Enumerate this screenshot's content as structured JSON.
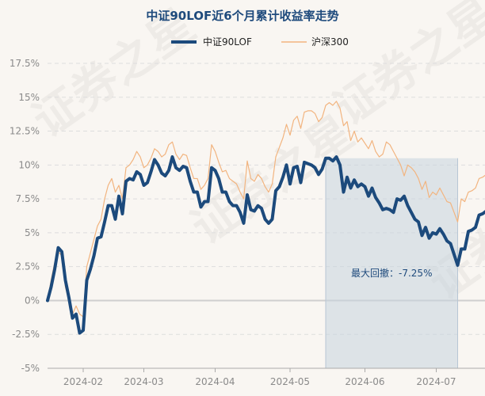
{
  "chart_data": {
    "type": "line",
    "title": "中证90LOF近6个月累计收益率走势",
    "ylim": [
      -5,
      17.5
    ],
    "y_ticks": [
      -5,
      -2.5,
      0,
      2.5,
      5,
      7.5,
      10,
      12.5,
      15,
      17.5
    ],
    "y_tick_labels": [
      "-5%",
      "-2.5%",
      "0%",
      "2.5%",
      "5%",
      "7.5%",
      "10%",
      "12.5%",
      "15%",
      "17.5%"
    ],
    "x_count": 121,
    "x_ticks": [
      {
        "index": 10,
        "label": "2024-02"
      },
      {
        "index": 27,
        "label": "2024-03"
      },
      {
        "index": 47,
        "label": "2024-04"
      },
      {
        "index": 68,
        "label": "2024-05"
      },
      {
        "index": 89,
        "label": "2024-06"
      },
      {
        "index": 109,
        "label": "2024-07"
      }
    ],
    "series": [
      {
        "name": "中证90LOF",
        "color": "#1c4a7c",
        "values": [
          0.0,
          1.0,
          2.3,
          3.9,
          3.6,
          1.5,
          0.2,
          -1.3,
          -1.0,
          -2.4,
          -2.2,
          1.5,
          2.3,
          3.3,
          4.6,
          4.7,
          5.8,
          7.0,
          7.0,
          6.0,
          7.7,
          6.4,
          8.8,
          9.0,
          8.9,
          9.5,
          9.3,
          8.5,
          8.7,
          9.5,
          10.4,
          10.0,
          9.4,
          9.2,
          9.6,
          10.6,
          9.8,
          9.6,
          9.9,
          9.8,
          8.8,
          8.0,
          8.0,
          6.9,
          7.3,
          7.3,
          9.8,
          9.6,
          9.0,
          8.0,
          8.0,
          7.3,
          7.0,
          7.0,
          6.5,
          5.7,
          7.8,
          6.7,
          6.6,
          7.0,
          6.8,
          6.0,
          5.7,
          6.0,
          8.1,
          8.4,
          9.1,
          10.0,
          8.6,
          9.8,
          9.9,
          8.7,
          10.2,
          10.1,
          10.0,
          9.8,
          9.3,
          9.7,
          10.5,
          10.5,
          10.3,
          10.6,
          10.0,
          8.0,
          9.1,
          8.3,
          8.9,
          8.4,
          8.6,
          8.4,
          7.7,
          8.3,
          7.6,
          7.2,
          6.7,
          6.8,
          6.7,
          6.5,
          7.5,
          7.4,
          7.7,
          7.0,
          6.5,
          6.0,
          5.8,
          4.8,
          5.4,
          4.6,
          5.0,
          4.9,
          5.3,
          4.9,
          4.4,
          4.2,
          3.4,
          2.6,
          3.8,
          3.8,
          5.1,
          5.2,
          5.4,
          6.3,
          6.4,
          6.6,
          7.0,
          7.6,
          6.5
        ]
      },
      {
        "name": "沪深300",
        "color": "#f2b47f",
        "values": [
          0.0,
          1.5,
          2.8,
          3.6,
          3.3,
          1.0,
          0.0,
          -1.0,
          -0.4,
          -1.0,
          -1.2,
          2.5,
          3.5,
          4.5,
          5.5,
          6.0,
          7.5,
          8.5,
          9.0,
          8.0,
          8.5,
          7.5,
          9.8,
          10.0,
          10.4,
          11.0,
          10.6,
          9.8,
          10.0,
          10.5,
          11.2,
          11.0,
          10.6,
          10.8,
          11.5,
          11.7,
          10.8,
          10.4,
          10.8,
          10.7,
          9.8,
          9.0,
          9.0,
          8.2,
          8.5,
          9.0,
          11.5,
          11.0,
          10.2,
          9.5,
          9.6,
          9.0,
          8.8,
          8.6,
          8.0,
          7.5,
          10.3,
          9.0,
          8.8,
          9.3,
          9.0,
          8.4,
          8.0,
          8.6,
          10.6,
          11.3,
          12.0,
          13.0,
          12.2,
          13.3,
          13.6,
          12.7,
          13.9,
          14.0,
          14.0,
          13.8,
          13.2,
          13.5,
          14.4,
          14.6,
          14.4,
          14.7,
          14.2,
          12.9,
          13.2,
          11.8,
          12.5,
          11.7,
          12.0,
          11.6,
          11.2,
          11.8,
          11.0,
          10.6,
          10.8,
          11.7,
          11.5,
          11.0,
          10.5,
          10.0,
          9.2,
          10.0,
          9.8,
          9.5,
          9.0,
          8.2,
          8.8,
          7.6,
          8.0,
          7.8,
          8.3,
          7.8,
          7.3,
          7.2,
          6.5,
          5.8,
          7.5,
          7.3,
          8.0,
          8.1,
          8.3,
          9.0,
          9.1,
          9.3,
          9.5,
          10.2,
          9.4
        ]
      }
    ],
    "drawdown": {
      "start_index": 78,
      "end_index": 115,
      "label": "最大回撤：-7.25%",
      "color": "#c7d3df"
    },
    "watermark": "证券之星"
  }
}
